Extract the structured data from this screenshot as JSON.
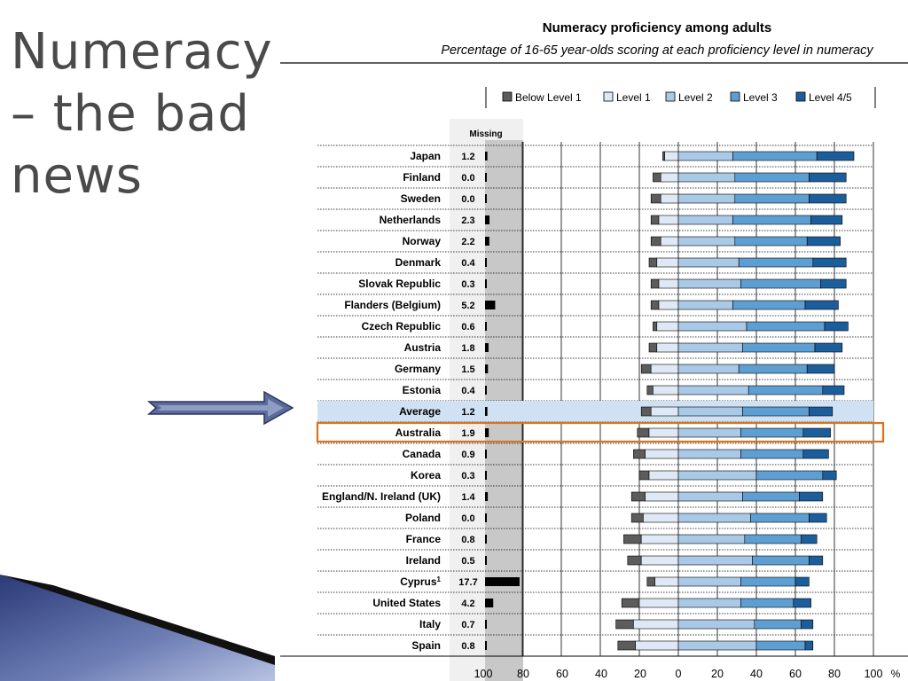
{
  "slide": {
    "title": "Numeracy\n– the bad\nnews"
  },
  "chart_data": {
    "type": "bar",
    "title": "Numeracy proficiency among adults",
    "subtitle": "Percentage of 16-65 year-olds scoring at each proficiency level in numeracy",
    "missing_header": "Missing",
    "unit": "%",
    "x_ticks": [
      "100",
      "80",
      "60",
      "40",
      "20",
      "0",
      "20",
      "40",
      "60",
      "80",
      "100"
    ],
    "xlim": [
      -100,
      100
    ],
    "series": [
      {
        "name": "Below Level 1",
        "color": "#5c5c5c"
      },
      {
        "name": "Level 1",
        "color": "#dfe9f5"
      },
      {
        "name": "Level 2",
        "color": "#a9c9e6"
      },
      {
        "name": "Level 3",
        "color": "#5e9fd3"
      },
      {
        "name": "Level 4/5",
        "color": "#1c5e9c"
      }
    ],
    "highlight_average": "Average",
    "highlight_outline": "Australia",
    "outline_color": "#d9741e",
    "rows": [
      {
        "country": "Japan",
        "missing": "1.2",
        "below1": 1,
        "l1": 7,
        "l2": 28,
        "l3": 43,
        "l45": 19
      },
      {
        "country": "Finland",
        "missing": "0.0",
        "below1": 4,
        "l1": 9,
        "l2": 29,
        "l3": 38,
        "l45": 19
      },
      {
        "country": "Sweden",
        "missing": "0.0",
        "below1": 5,
        "l1": 9,
        "l2": 29,
        "l3": 38,
        "l45": 19
      },
      {
        "country": "Netherlands",
        "missing": "2.3",
        "below1": 4,
        "l1": 10,
        "l2": 28,
        "l3": 40,
        "l45": 16
      },
      {
        "country": "Norway",
        "missing": "2.2",
        "below1": 5,
        "l1": 9,
        "l2": 29,
        "l3": 37,
        "l45": 17
      },
      {
        "country": "Denmark",
        "missing": "0.4",
        "below1": 4,
        "l1": 11,
        "l2": 31,
        "l3": 38,
        "l45": 17
      },
      {
        "country": "Slovak Republic",
        "missing": "0.3",
        "below1": 4,
        "l1": 10,
        "l2": 32,
        "l3": 41,
        "l45": 13
      },
      {
        "country": "Flanders (Belgium)",
        "missing": "5.2",
        "below1": 4,
        "l1": 10,
        "l2": 28,
        "l3": 37,
        "l45": 17
      },
      {
        "country": "Czech Republic",
        "missing": "0.6",
        "below1": 2,
        "l1": 11,
        "l2": 35,
        "l3": 40,
        "l45": 12
      },
      {
        "country": "Austria",
        "missing": "1.8",
        "below1": 4,
        "l1": 11,
        "l2": 33,
        "l3": 37,
        "l45": 14
      },
      {
        "country": "Germany",
        "missing": "1.5",
        "below1": 5,
        "l1": 14,
        "l2": 31,
        "l3": 35,
        "l45": 14
      },
      {
        "country": "Estonia",
        "missing": "0.4",
        "below1": 3,
        "l1": 13,
        "l2": 36,
        "l3": 38,
        "l45": 11
      },
      {
        "country": "Average",
        "missing": "1.2",
        "below1": 5,
        "l1": 14,
        "l2": 33,
        "l3": 34,
        "l45": 12
      },
      {
        "country": "Australia",
        "missing": "1.9",
        "below1": 6,
        "l1": 15,
        "l2": 32,
        "l3": 32,
        "l45": 14
      },
      {
        "country": "Canada",
        "missing": "0.9",
        "below1": 6,
        "l1": 17,
        "l2": 32,
        "l3": 32,
        "l45": 13
      },
      {
        "country": "Korea",
        "missing": "0.3",
        "below1": 5,
        "l1": 15,
        "l2": 40,
        "l3": 34,
        "l45": 7
      },
      {
        "country": "England/N. Ireland (UK)",
        "missing": "1.4",
        "below1": 7,
        "l1": 17,
        "l2": 33,
        "l3": 29,
        "l45": 12
      },
      {
        "country": "Poland",
        "missing": "0.0",
        "below1": 6,
        "l1": 18,
        "l2": 37,
        "l3": 30,
        "l45": 9
      },
      {
        "country": "France",
        "missing": "0.8",
        "below1": 9,
        "l1": 19,
        "l2": 34,
        "l3": 29,
        "l45": 8
      },
      {
        "country": "Ireland",
        "missing": "0.5",
        "below1": 7,
        "l1": 19,
        "l2": 38,
        "l3": 29,
        "l45": 7
      },
      {
        "country": "Cyprus¹",
        "missing": "17.7",
        "below1": 4,
        "l1": 12,
        "l2": 32,
        "l3": 28,
        "l45": 7
      },
      {
        "country": "United States",
        "missing": "4.2",
        "below1": 9,
        "l1": 20,
        "l2": 32,
        "l3": 27,
        "l45": 9
      },
      {
        "country": "Italy",
        "missing": "0.7",
        "below1": 9,
        "l1": 23,
        "l2": 39,
        "l3": 24,
        "l45": 6
      },
      {
        "country": "Spain",
        "missing": "0.8",
        "below1": 9,
        "l1": 22,
        "l2": 40,
        "l3": 25,
        "l45": 4
      }
    ]
  }
}
